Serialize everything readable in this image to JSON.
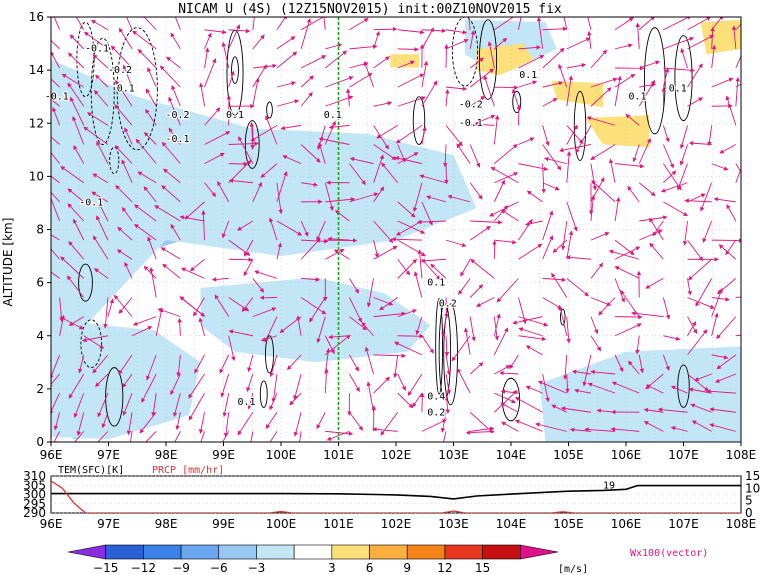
{
  "title": "NICAM U (4S) (12Z15NOV2015) init:00Z10NOV2015 fix",
  "colors": {
    "vector": "#e0177f",
    "reference_line": "#17a317",
    "precip": "#e03030",
    "contour": "#000000"
  },
  "chart_data": [
    {
      "type": "heatmap",
      "title": "NICAM U (4S) (12Z15NOV2015) init:00Z10NOV2015 fix",
      "xlabel": "",
      "ylabel": "ALTITUDE [km]",
      "x_ticks": [
        "96E",
        "97E",
        "98E",
        "99E",
        "100E",
        "101E",
        "102E",
        "103E",
        "104E",
        "105E",
        "106E",
        "107E",
        "108E"
      ],
      "y_ticks": [
        0,
        2,
        4,
        6,
        8,
        10,
        12,
        14,
        16
      ],
      "xlim": [
        96,
        108
      ],
      "ylim": [
        0,
        16
      ],
      "reference_line_lon": 101,
      "colorbar": {
        "unit": "[m/s]",
        "levels": [
          -15,
          -12,
          -9,
          -6,
          -3,
          3,
          6,
          9,
          12,
          15
        ],
        "colors": [
          "#8a2be2",
          "#2a5fd6",
          "#3c82e8",
          "#6aa6f0",
          "#98c8f2",
          "#c2e6f6",
          "#ffffff",
          "#fde07a",
          "#fbb040",
          "#f48418",
          "#e83820",
          "#c41010",
          "#e0108a"
        ]
      },
      "shaded_regions": [
        {
          "level": -9,
          "x": [
            96.0,
            96.6,
            96.9,
            97.1,
            96.9,
            96.3,
            96.0
          ],
          "y": [
            9.6,
            9.8,
            9.2,
            8.2,
            7.4,
            7.6,
            8.0
          ]
        },
        {
          "level": -6,
          "x": [
            96.0,
            96.5,
            97.6,
            98.6,
            99.2,
            99.4,
            98.6,
            97.4,
            96.8,
            96.0
          ],
          "y": [
            12.8,
            13.3,
            12.0,
            10.6,
            9.8,
            8.8,
            7.8,
            7.0,
            6.0,
            5.2
          ]
        },
        {
          "level": -3,
          "x": [
            96.0,
            97.5,
            99.5,
            101.5,
            103.0,
            103.4,
            102.0,
            100.0,
            98.0,
            96.0
          ],
          "y": [
            14.4,
            13.0,
            11.8,
            11.6,
            10.8,
            8.8,
            7.6,
            7.0,
            7.6,
            3.0
          ]
        },
        {
          "level": -6,
          "x": [
            96.1,
            96.9,
            97.3,
            97.0,
            96.4,
            96.1
          ],
          "y": [
            1.6,
            1.8,
            1.1,
            0.3,
            0.1,
            0.6
          ]
        },
        {
          "level": -3,
          "x": [
            96.0,
            97.8,
            98.6,
            98.4,
            97.0,
            96.0
          ],
          "y": [
            4.6,
            4.2,
            3.0,
            1.0,
            0.1,
            0.2
          ]
        },
        {
          "level": -3,
          "x": [
            98.6,
            100.6,
            101.8,
            102.6,
            102.2,
            100.6,
            99.2,
            98.6
          ],
          "y": [
            5.8,
            6.2,
            5.6,
            4.4,
            3.4,
            3.0,
            3.4,
            4.4
          ]
        },
        {
          "level": -3,
          "x": [
            103.2,
            104.6,
            104.8,
            103.8,
            103.2
          ],
          "y": [
            15.9,
            15.8,
            14.8,
            13.8,
            14.6
          ]
        },
        {
          "level": -6,
          "x": [
            104.8,
            106.4,
            107.6,
            108.0,
            108.0,
            106.0,
            104.8
          ],
          "y": [
            1.4,
            1.8,
            2.2,
            2.6,
            0.0,
            0.0,
            0.5
          ]
        },
        {
          "level": -3,
          "x": [
            104.5,
            106.0,
            108.0,
            108.0,
            104.6
          ],
          "y": [
            2.2,
            3.4,
            3.6,
            0.0,
            0.0
          ]
        },
        {
          "level": 3,
          "x": [
            103.4,
            104.2,
            104.4,
            103.8,
            103.4
          ],
          "y": [
            14.8,
            15.0,
            14.4,
            13.8,
            14.0
          ]
        },
        {
          "level": 3,
          "x": [
            104.7,
            105.6,
            105.6,
            104.8
          ],
          "y": [
            13.6,
            13.5,
            12.6,
            12.9
          ]
        },
        {
          "level": 3,
          "x": [
            105.3,
            106.4,
            106.4,
            105.6
          ],
          "y": [
            12.2,
            12.3,
            11.1,
            11.2
          ]
        },
        {
          "level": 3,
          "x": [
            107.3,
            108.0,
            108.0,
            107.4
          ],
          "y": [
            15.8,
            15.9,
            14.8,
            14.6
          ]
        },
        {
          "level": 3,
          "x": [
            101.9,
            102.4,
            102.4,
            101.9
          ],
          "y": [
            14.6,
            14.6,
            14.1,
            14.1
          ]
        }
      ],
      "contour_labels": [
        {
          "text": "-0.1",
          "x": 96.8,
          "y": 14.7
        },
        {
          "text": "-0.2",
          "x": 97.2,
          "y": 13.9
        },
        {
          "text": "0.1",
          "x": 97.3,
          "y": 13.2
        },
        {
          "text": "-0.1",
          "x": 96.1,
          "y": 12.9
        },
        {
          "text": "-0.2",
          "x": 98.2,
          "y": 12.2
        },
        {
          "text": "-0.1",
          "x": 98.2,
          "y": 11.3
        },
        {
          "text": "0.1",
          "x": 99.2,
          "y": 12.2
        },
        {
          "text": "0.1",
          "x": 100.9,
          "y": 12.2
        },
        {
          "text": "-0.1",
          "x": 96.7,
          "y": 8.9
        },
        {
          "text": "-0.2",
          "x": 103.3,
          "y": 12.6
        },
        {
          "text": "-0.1",
          "x": 103.3,
          "y": 11.9
        },
        {
          "text": "0.1",
          "x": 104.3,
          "y": 13.7
        },
        {
          "text": "0.1",
          "x": 106.2,
          "y": 12.9
        },
        {
          "text": "0.1",
          "x": 106.9,
          "y": 13.2
        },
        {
          "text": "0.1",
          "x": 102.7,
          "y": 5.9
        },
        {
          "text": "0.2",
          "x": 102.9,
          "y": 5.1
        },
        {
          "text": "0.1",
          "x": 99.4,
          "y": 1.4
        },
        {
          "text": "0.4",
          "x": 102.7,
          "y": 1.6
        },
        {
          "text": "0.2",
          "x": 102.7,
          "y": 1.0
        }
      ],
      "contours": [
        {
          "sign": "neg",
          "x": 96.6,
          "y": 14.4,
          "rx": 0.15,
          "ry": 1.4
        },
        {
          "sign": "neg",
          "x": 96.9,
          "y": 13.2,
          "rx": 0.2,
          "ry": 2.0
        },
        {
          "sign": "neg",
          "x": 97.5,
          "y": 13.3,
          "rx": 0.35,
          "ry": 2.3
        },
        {
          "sign": "pos",
          "x": 99.2,
          "y": 13.9,
          "rx": 0.14,
          "ry": 1.6
        },
        {
          "sign": "pos",
          "x": 99.2,
          "y": 14.0,
          "rx": 0.06,
          "ry": 0.5
        },
        {
          "sign": "pos",
          "x": 99.5,
          "y": 11.2,
          "rx": 0.12,
          "ry": 0.9
        },
        {
          "sign": "pos",
          "x": 102.4,
          "y": 12.1,
          "rx": 0.1,
          "ry": 0.9
        },
        {
          "sign": "pos",
          "x": 103.6,
          "y": 14.4,
          "rx": 0.15,
          "ry": 1.5
        },
        {
          "sign": "neg",
          "x": 103.2,
          "y": 14.7,
          "rx": 0.22,
          "ry": 1.3
        },
        {
          "sign": "pos",
          "x": 104.1,
          "y": 12.8,
          "rx": 0.07,
          "ry": 0.4
        },
        {
          "sign": "pos",
          "x": 105.2,
          "y": 11.9,
          "rx": 0.1,
          "ry": 1.3
        },
        {
          "sign": "pos",
          "x": 106.5,
          "y": 13.6,
          "rx": 0.18,
          "ry": 2.0
        },
        {
          "sign": "pos",
          "x": 107.0,
          "y": 13.7,
          "rx": 0.15,
          "ry": 1.6
        },
        {
          "sign": "pos",
          "x": 99.8,
          "y": 12.5,
          "rx": 0.05,
          "ry": 0.3
        },
        {
          "sign": "neg",
          "x": 97.1,
          "y": 10.6,
          "rx": 0.08,
          "ry": 0.5
        },
        {
          "sign": "pos",
          "x": 96.6,
          "y": 6.0,
          "rx": 0.12,
          "ry": 0.7
        },
        {
          "sign": "neg",
          "x": 96.7,
          "y": 3.7,
          "rx": 0.18,
          "ry": 0.9
        },
        {
          "sign": "pos",
          "x": 97.1,
          "y": 1.7,
          "rx": 0.15,
          "ry": 1.1
        },
        {
          "sign": "pos",
          "x": 99.8,
          "y": 3.3,
          "rx": 0.07,
          "ry": 0.7
        },
        {
          "sign": "pos",
          "x": 99.7,
          "y": 1.8,
          "rx": 0.06,
          "ry": 0.5
        },
        {
          "sign": "pos",
          "x": 102.75,
          "y": 3.6,
          "rx": 0.06,
          "ry": 1.8
        },
        {
          "sign": "pos",
          "x": 102.85,
          "y": 3.4,
          "rx": 0.1,
          "ry": 1.8
        },
        {
          "sign": "pos",
          "x": 102.95,
          "y": 3.3,
          "rx": 0.12,
          "ry": 1.9
        },
        {
          "sign": "pos",
          "x": 104.9,
          "y": 4.7,
          "rx": 0.04,
          "ry": 0.3
        },
        {
          "sign": "pos",
          "x": 104.0,
          "y": 1.6,
          "rx": 0.15,
          "ry": 0.8
        },
        {
          "sign": "pos",
          "x": 107.0,
          "y": 2.1,
          "rx": 0.1,
          "ry": 0.8
        }
      ],
      "legend": "bottom"
    },
    {
      "type": "line",
      "title": "",
      "series": [
        {
          "name": "TEM(SFC)[K]",
          "color": "#000000",
          "x": [
            96,
            97,
            98,
            99,
            100,
            101,
            102,
            102.6,
            103,
            103.4,
            104,
            104.6,
            105,
            105.6,
            106,
            106.2,
            107,
            108
          ],
          "y": [
            300.5,
            300.5,
            300.5,
            300.5,
            300.5,
            300.4,
            299.8,
            299.0,
            297.6,
            299.2,
            300.2,
            301.2,
            301.8,
            302.2,
            302.8,
            304.8,
            304.8,
            304.8
          ]
        },
        {
          "name": "PRCP [mm/hr]",
          "color": "#e03030",
          "x": [
            96,
            96.2,
            96.4,
            96.6,
            97,
            99.8,
            100,
            100.2,
            102.8,
            103,
            103.2,
            104.7,
            104.9,
            105.1,
            108
          ],
          "y": [
            13,
            10,
            4,
            0,
            0,
            0,
            0.6,
            0,
            0,
            0.8,
            0,
            0,
            0.5,
            0,
            0
          ]
        }
      ],
      "left_ticks": [
        290,
        295,
        300,
        305,
        310
      ],
      "right_ticks": [
        0,
        5,
        10,
        15
      ],
      "left_range": [
        290,
        310
      ],
      "right_range": [
        0,
        15
      ],
      "annotation": {
        "text": "19",
        "x": 105.6,
        "y": 305.5
      }
    }
  ],
  "labels": {
    "temp": "TEM(SFC)[K]",
    "prcp": "PRCP [mm/hr]",
    "unit": "[m/s]",
    "vector": "Wx100(vector)"
  }
}
